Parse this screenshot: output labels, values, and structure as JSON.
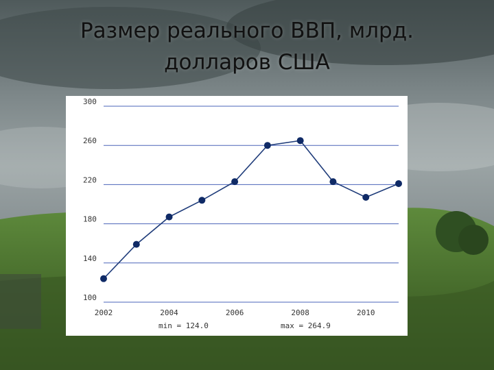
{
  "slide": {
    "title_line1": "Размер реального ВВП, млрд.",
    "title_line2": "долларов США"
  },
  "chart_data": {
    "type": "line",
    "title": "",
    "xlabel": "",
    "ylabel": "",
    "x": [
      2002,
      2003,
      2004,
      2005,
      2006,
      2007,
      2008,
      2009,
      2010,
      2011
    ],
    "series": [
      {
        "values": [
          124.0,
          159,
          187,
          204,
          223,
          260,
          264.9,
          223,
          207,
          221
        ]
      }
    ],
    "ylim": [
      100,
      300
    ],
    "xlim": [
      2002,
      2011
    ],
    "yticks": [
      "100",
      "140",
      "180",
      "220",
      "260",
      "300"
    ],
    "xticks": [
      "2002",
      "2004",
      "2006",
      "2008",
      "2010"
    ],
    "grid": "horizontal",
    "line_color": "#1f3c7a",
    "grid_color": "#4a63b8",
    "summary": {
      "min_label": "min = 124.0",
      "max_label": "max = 264.9"
    }
  }
}
